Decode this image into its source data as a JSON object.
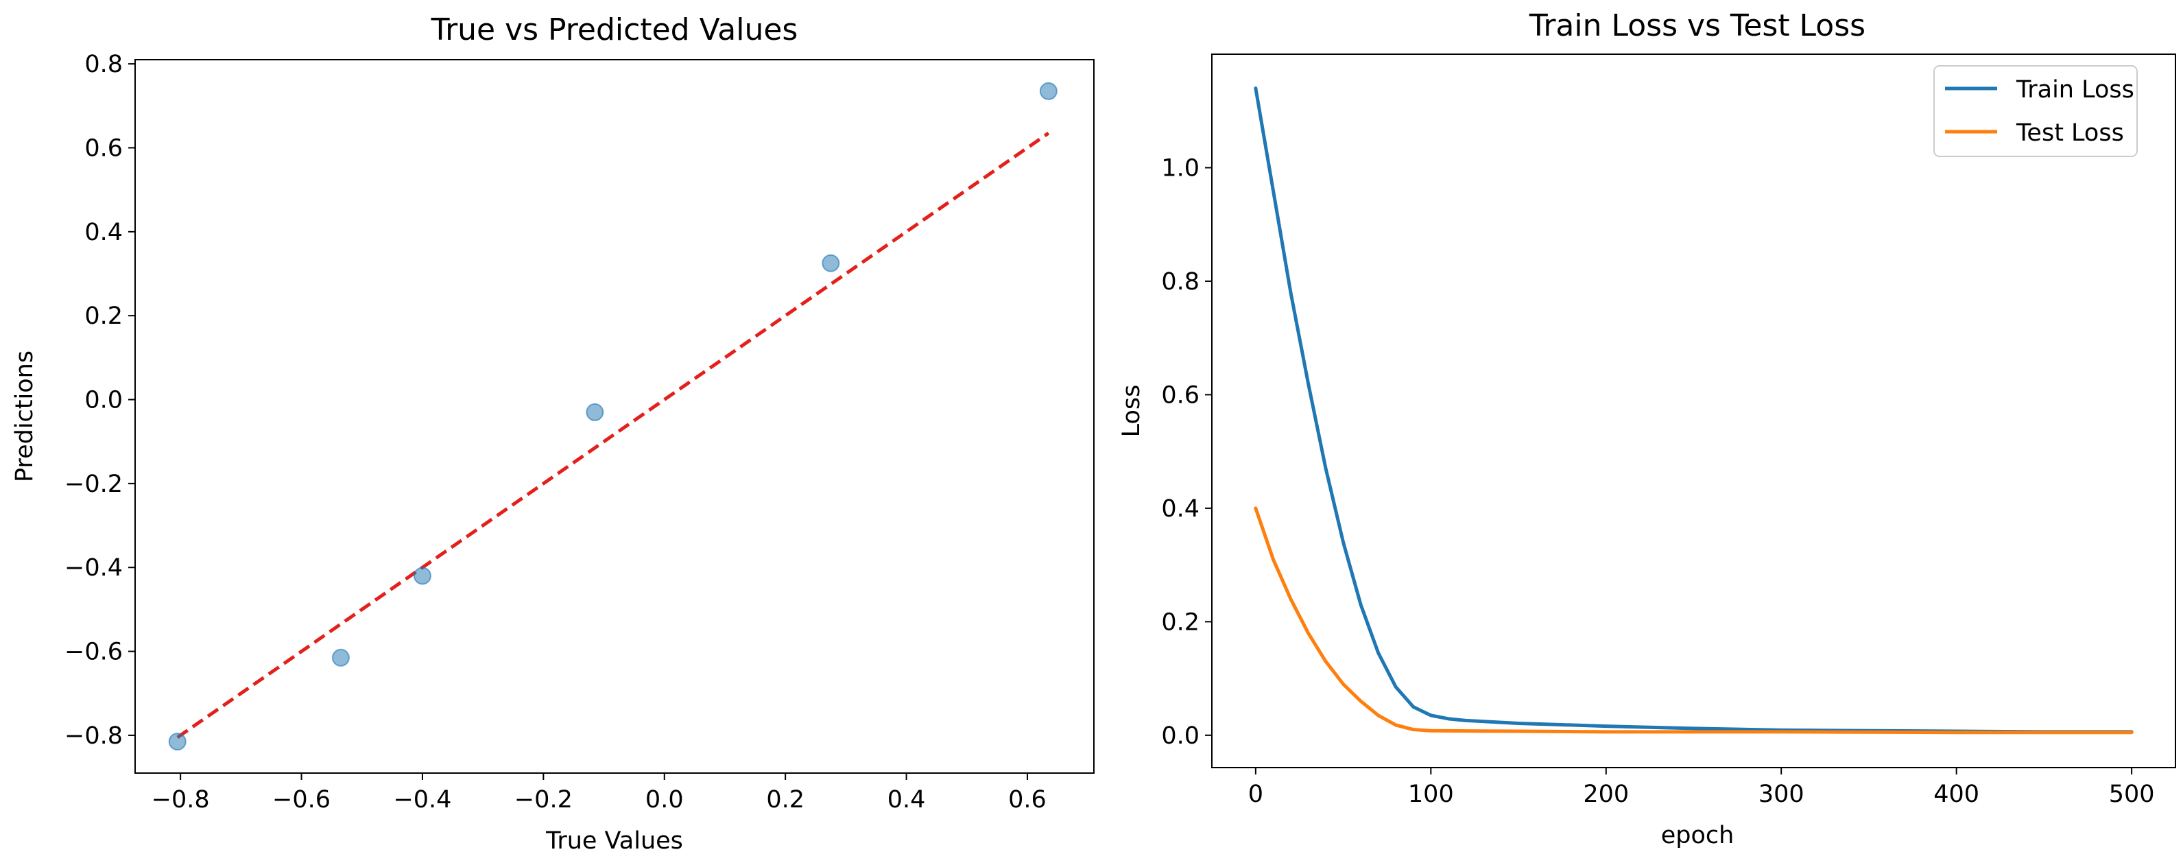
{
  "chart_data": [
    {
      "type": "scatter",
      "title": "True vs Predicted Values",
      "xlabel": "True Values",
      "ylabel": "Predictions",
      "xlim": [
        -0.875,
        0.71
      ],
      "ylim": [
        -0.89,
        0.81
      ],
      "xticks": [
        -0.8,
        -0.6,
        -0.4,
        -0.2,
        0.0,
        0.2,
        0.4,
        0.6
      ],
      "xtick_labels": [
        "−0.8",
        "−0.6",
        "−0.4",
        "−0.2",
        "0.0",
        "0.2",
        "0.4",
        "0.6"
      ],
      "yticks": [
        -0.8,
        -0.6,
        -0.4,
        -0.2,
        0.0,
        0.2,
        0.4,
        0.6,
        0.8
      ],
      "ytick_labels": [
        "−0.8",
        "−0.6",
        "−0.4",
        "−0.2",
        "0.0",
        "0.2",
        "0.4",
        "0.6",
        "0.8"
      ],
      "grid": false,
      "points": [
        {
          "x": -0.805,
          "y": -0.815
        },
        {
          "x": -0.535,
          "y": -0.615
        },
        {
          "x": -0.4,
          "y": -0.42
        },
        {
          "x": -0.115,
          "y": -0.03
        },
        {
          "x": 0.275,
          "y": 0.325
        },
        {
          "x": 0.635,
          "y": 0.735
        }
      ],
      "point_color": "#1f77b4",
      "point_alpha": 0.5,
      "reference_line": {
        "from": [
          -0.805,
          -0.805
        ],
        "to": [
          0.635,
          0.635
        ],
        "color": "#e3201b",
        "style": "dashed"
      }
    },
    {
      "type": "line",
      "title": "Train Loss vs Test Loss",
      "xlabel": "epoch",
      "ylabel": "Loss",
      "xlim": [
        -25,
        525
      ],
      "ylim": [
        -0.057,
        1.2
      ],
      "xticks": [
        0,
        100,
        200,
        300,
        400,
        500
      ],
      "xtick_labels": [
        "0",
        "100",
        "200",
        "300",
        "400",
        "500"
      ],
      "yticks": [
        0.0,
        0.2,
        0.4,
        0.6,
        0.8,
        1.0
      ],
      "ytick_labels": [
        "0.0",
        "0.2",
        "0.4",
        "0.6",
        "0.8",
        "1.0"
      ],
      "grid": false,
      "legend_position": "top-right",
      "series": [
        {
          "name": "Train Loss",
          "color": "#1f77b4",
          "x": [
            0,
            10,
            20,
            30,
            40,
            50,
            60,
            70,
            80,
            90,
            100,
            110,
            120,
            150,
            200,
            250,
            300,
            350,
            400,
            450,
            500
          ],
          "y": [
            1.14,
            0.96,
            0.78,
            0.62,
            0.47,
            0.34,
            0.23,
            0.145,
            0.085,
            0.05,
            0.035,
            0.029,
            0.026,
            0.021,
            0.016,
            0.012,
            0.009,
            0.008,
            0.007,
            0.006,
            0.006
          ]
        },
        {
          "name": "Test Loss",
          "color": "#ff7f0e",
          "x": [
            0,
            10,
            20,
            30,
            40,
            50,
            60,
            70,
            80,
            90,
            100,
            150,
            200,
            300,
            400,
            500
          ],
          "y": [
            0.4,
            0.31,
            0.24,
            0.18,
            0.13,
            0.09,
            0.06,
            0.035,
            0.018,
            0.01,
            0.008,
            0.007,
            0.006,
            0.006,
            0.005,
            0.005
          ]
        }
      ]
    }
  ]
}
